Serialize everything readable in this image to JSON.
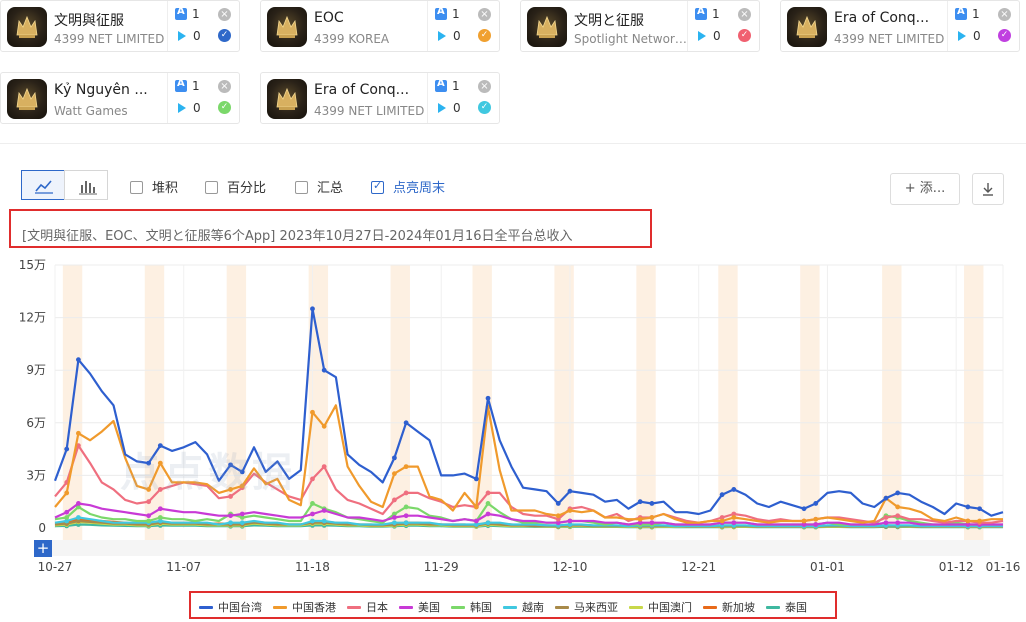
{
  "apps": [
    {
      "name": "文明與征服",
      "publisher": "4399 NET LIMITED",
      "ios": "1",
      "gp": "0",
      "check_color": "#2e68c9"
    },
    {
      "name": "EOC",
      "publisher": "4399 KOREA",
      "ios": "1",
      "gp": "0",
      "check_color": "#f0a030"
    },
    {
      "name": "文明と征服",
      "publisher": "Spotlight Network ...",
      "ios": "1",
      "gp": "0",
      "check_color": "#f06070"
    },
    {
      "name": "Era of Conq...",
      "publisher": "4399 NET LIMITED",
      "ios": "1",
      "gp": "0",
      "check_color": "#c040e0"
    },
    {
      "name": "Kỷ Nguyên ...",
      "publisher": "Watt Games",
      "ios": "1",
      "gp": "0",
      "check_color": "#7bd86a"
    },
    {
      "name": "Era of Conq...",
      "publisher": "4399 NET LIMITED",
      "ios": "1",
      "gp": "0",
      "check_color": "#40c8e0"
    }
  ],
  "toolbar": {
    "options": [
      "堆积",
      "百分比",
      "汇总",
      "点亮周末"
    ],
    "add_label": "+ 添..."
  },
  "watermark": "点点数据",
  "chart_data": {
    "type": "line",
    "title": "[文明與征服、EOC、文明と征服等6个App]  2023年10月27日-2024年01月16日全平台总收入",
    "ylim": [
      0,
      150000
    ],
    "ytick_labels": [
      "0",
      "3万",
      "6万",
      "9万",
      "12万",
      "15万"
    ],
    "xtick_labels": [
      "10-27",
      "11-07",
      "11-18",
      "11-29",
      "12-10",
      "12-21",
      "01-01",
      "01-12",
      "01-16"
    ],
    "xtick_days": [
      0,
      11,
      22,
      33,
      44,
      55,
      66,
      77,
      81
    ],
    "n_days": 82,
    "weekend_highlight": true,
    "legend_position": "bottom",
    "series": [
      {
        "name": "中国台湾",
        "color": "#2e5fcf",
        "values": [
          27000,
          45000,
          96000,
          88000,
          78000,
          70000,
          42000,
          38000,
          37000,
          47000,
          44000,
          46000,
          49000,
          42000,
          27000,
          36000,
          32000,
          46000,
          32000,
          38000,
          28000,
          33000,
          125000,
          90000,
          86000,
          42000,
          36000,
          32000,
          26000,
          40000,
          60000,
          55000,
          50000,
          30000,
          30000,
          31000,
          28000,
          74000,
          50000,
          35000,
          23000,
          22000,
          21000,
          14000,
          21000,
          20000,
          19000,
          15000,
          16000,
          11000,
          15000,
          14000,
          15000,
          9000,
          9000,
          8000,
          10000,
          19000,
          22000,
          19000,
          14000,
          12000,
          15000,
          13000,
          11000,
          14000,
          20000,
          21000,
          20000,
          14000,
          12000,
          17000,
          20000,
          19000,
          15000,
          12000,
          8000,
          14000,
          12000,
          11000,
          7000,
          9000
        ]
      },
      {
        "name": "中国香港",
        "color": "#f09a2c",
        "values": [
          12000,
          20000,
          54000,
          50000,
          55000,
          61000,
          40000,
          24000,
          22000,
          37000,
          26000,
          26000,
          26000,
          25000,
          20000,
          22000,
          24000,
          34000,
          25000,
          28000,
          16000,
          13000,
          66000,
          58000,
          70000,
          35000,
          24000,
          15000,
          12000,
          31000,
          35000,
          35000,
          18000,
          16000,
          10000,
          20000,
          12000,
          69000,
          33000,
          10000,
          10000,
          10000,
          8000,
          7000,
          10000,
          9000,
          10000,
          6000,
          6000,
          5000,
          5000,
          6000,
          8000,
          5000,
          3000,
          3000,
          4000,
          4000,
          6000,
          5000,
          4000,
          3000,
          4000,
          4000,
          4000,
          5000,
          6000,
          5000,
          4000,
          3000,
          4000,
          17000,
          12000,
          11000,
          9000,
          5000,
          4000,
          6000,
          4000,
          4000,
          5000,
          5000
        ]
      },
      {
        "name": "日本",
        "color": "#ef6f7f",
        "values": [
          18000,
          26000,
          47000,
          37000,
          26000,
          22000,
          16000,
          14000,
          15000,
          22000,
          24000,
          26000,
          25000,
          24000,
          17000,
          18000,
          23000,
          31000,
          26000,
          22000,
          18000,
          16000,
          28000,
          35000,
          22000,
          16000,
          14000,
          11000,
          8000,
          16000,
          20000,
          20000,
          17000,
          15000,
          12000,
          13000,
          12000,
          20000,
          20000,
          12000,
          8000,
          7000,
          7000,
          5000,
          11000,
          12000,
          10000,
          6000,
          8000,
          4000,
          6000,
          6000,
          8000,
          6000,
          4000,
          3000,
          4000,
          6000,
          8000,
          7000,
          5000,
          4000,
          5000,
          4000,
          4000,
          5000,
          6000,
          6000,
          5000,
          4000,
          3000,
          6000,
          7000,
          5000,
          5000,
          4000,
          3000,
          4000,
          4000,
          3000,
          3000,
          4000
        ]
      },
      {
        "name": "美国",
        "color": "#c83ad6",
        "values": [
          6000,
          9000,
          14000,
          13000,
          11000,
          10000,
          9000,
          8000,
          7000,
          11000,
          10000,
          9000,
          9000,
          8000,
          7000,
          7000,
          8000,
          9000,
          8000,
          7000,
          6000,
          6000,
          8000,
          10000,
          8000,
          6000,
          6000,
          5000,
          4000,
          6000,
          7000,
          7000,
          6000,
          5000,
          4000,
          5000,
          4000,
          8000,
          7000,
          5000,
          4000,
          4000,
          3000,
          3000,
          4000,
          4000,
          4000,
          3000,
          3000,
          2000,
          3000,
          3000,
          3000,
          2000,
          2000,
          2000,
          2000,
          3000,
          3000,
          3000,
          2000,
          2000,
          2000,
          2000,
          2000,
          2000,
          3000,
          3000,
          2000,
          2000,
          2000,
          3000,
          3000,
          3000,
          2000,
          2000,
          2000,
          2000,
          2000,
          2000,
          2000,
          2000
        ]
      },
      {
        "name": "韩国",
        "color": "#7bd86a",
        "values": [
          5000,
          6000,
          12000,
          8000,
          6000,
          5000,
          5000,
          4000,
          4000,
          6000,
          5000,
          5000,
          4000,
          5000,
          4000,
          8000,
          6000,
          7000,
          6000,
          5000,
          4000,
          4000,
          14000,
          11000,
          9000,
          6000,
          5000,
          4000,
          3000,
          8000,
          12000,
          11000,
          7000,
          6000,
          4000,
          5000,
          4000,
          14000,
          9000,
          5000,
          3000,
          3000,
          3000,
          3000,
          4000,
          4000,
          3000,
          2000,
          3000,
          2000,
          2000,
          2000,
          3000,
          2000,
          2000,
          2000,
          2000,
          3000,
          3000,
          3000,
          2000,
          2000,
          2000,
          2000,
          2000,
          2000,
          3000,
          2000,
          2000,
          2000,
          2000,
          7000,
          6000,
          4000,
          3000,
          2000,
          2000,
          3000,
          2000,
          2000,
          2000,
          2000
        ]
      },
      {
        "name": "越南",
        "color": "#40c8e0",
        "values": [
          3000,
          4000,
          6000,
          5000,
          4000,
          3000,
          3000,
          3000,
          3000,
          4000,
          3000,
          3000,
          3000,
          3000,
          2000,
          3000,
          3000,
          4000,
          3000,
          3000,
          2000,
          2000,
          4000,
          4000,
          3000,
          3000,
          2000,
          2000,
          2000,
          3000,
          3000,
          3000,
          3000,
          2000,
          2000,
          2000,
          2000,
          3000,
          3000,
          2000,
          2000,
          2000,
          1500,
          1500,
          2000,
          2000,
          1500,
          1500,
          1500,
          1000,
          1500,
          1500,
          1500,
          1000,
          1000,
          1000,
          1000,
          1500,
          1500,
          1500,
          1000,
          1000,
          1000,
          1000,
          1000,
          1000,
          1500,
          1500,
          1000,
          1000,
          1000,
          1500,
          1500,
          1500,
          1000,
          1000,
          1000,
          1000,
          1000,
          1000,
          1000,
          1000
        ]
      },
      {
        "name": "马来西亚",
        "color": "#a88a4a",
        "values": [
          2000,
          2500,
          4000,
          3500,
          3000,
          2500,
          2500,
          2000,
          2000,
          3000,
          2500,
          2500,
          2500,
          2000,
          2000,
          2000,
          2000,
          3000,
          2500,
          2000,
          2000,
          2000,
          3000,
          3000,
          2500,
          2000,
          2000,
          1500,
          1500,
          2000,
          2500,
          2500,
          2000,
          2000,
          1500,
          1500,
          1500,
          2500,
          2000,
          1500,
          1500,
          1000,
          1000,
          1000,
          1500,
          1500,
          1000,
          1000,
          1000,
          1000,
          1000,
          1000,
          1000,
          1000,
          800,
          800,
          800,
          1000,
          1000,
          1000,
          800,
          800,
          800,
          800,
          800,
          800,
          1000,
          1000,
          800,
          800,
          800,
          1000,
          1000,
          1000,
          800,
          800,
          800,
          800,
          800,
          800,
          800,
          800
        ]
      },
      {
        "name": "中国澳门",
        "color": "#c8d84a",
        "values": [
          1500,
          2000,
          3500,
          3000,
          2500,
          2000,
          2000,
          1500,
          1500,
          2500,
          2000,
          2000,
          2000,
          1500,
          1500,
          1500,
          1500,
          2500,
          2000,
          1500,
          1500,
          1500,
          2500,
          2500,
          2000,
          1500,
          1500,
          1000,
          1000,
          1500,
          2000,
          2000,
          1500,
          1500,
          1000,
          1000,
          1000,
          2000,
          1500,
          1000,
          1000,
          1000,
          800,
          800,
          1000,
          1000,
          800,
          800,
          800,
          700,
          700,
          700,
          800,
          700,
          600,
          600,
          600,
          700,
          700,
          700,
          600,
          600,
          600,
          600,
          600,
          600,
          700,
          700,
          600,
          600,
          600,
          1000,
          900,
          800,
          700,
          600,
          600,
          600,
          600,
          600,
          600,
          600
        ]
      },
      {
        "name": "新加坡",
        "color": "#e86a1a",
        "values": [
          2500,
          3000,
          5000,
          4500,
          4000,
          3500,
          3000,
          2500,
          2500,
          3500,
          3000,
          3000,
          3000,
          2500,
          2500,
          2500,
          2500,
          3500,
          3000,
          2500,
          2000,
          2000,
          3500,
          3500,
          3000,
          2500,
          2000,
          2000,
          1500,
          2500,
          3000,
          3000,
          2500,
          2000,
          2000,
          2000,
          1500,
          3000,
          2500,
          2000,
          1500,
          1500,
          1500,
          1200,
          1500,
          1500,
          1200,
          1000,
          1000,
          1000,
          1000,
          1000,
          1200,
          1000,
          900,
          900,
          900,
          1000,
          1200,
          1100,
          900,
          900,
          900,
          900,
          900,
          900,
          1000,
          1000,
          900,
          900,
          900,
          1500,
          1300,
          1200,
          1000,
          900,
          900,
          900,
          900,
          900,
          900,
          900
        ]
      },
      {
        "name": "泰国",
        "color": "#3fb8a0",
        "values": [
          1000,
          1200,
          2000,
          1800,
          1500,
          1300,
          1200,
          1000,
          1000,
          1500,
          1300,
          1300,
          1300,
          1100,
          1000,
          1000,
          1000,
          1500,
          1300,
          1100,
          1000,
          1000,
          1500,
          1500,
          1300,
          1000,
          1000,
          800,
          800,
          1000,
          1300,
          1300,
          1000,
          1000,
          800,
          800,
          800,
          1300,
          1000,
          800,
          800,
          700,
          700,
          600,
          700,
          700,
          600,
          600,
          600,
          500,
          500,
          500,
          600,
          500,
          500,
          500,
          500,
          500,
          600,
          600,
          500,
          500,
          500,
          500,
          500,
          500,
          600,
          600,
          500,
          500,
          500,
          700,
          600,
          600,
          500,
          500,
          500,
          500,
          500,
          500,
          500,
          500
        ]
      }
    ]
  }
}
